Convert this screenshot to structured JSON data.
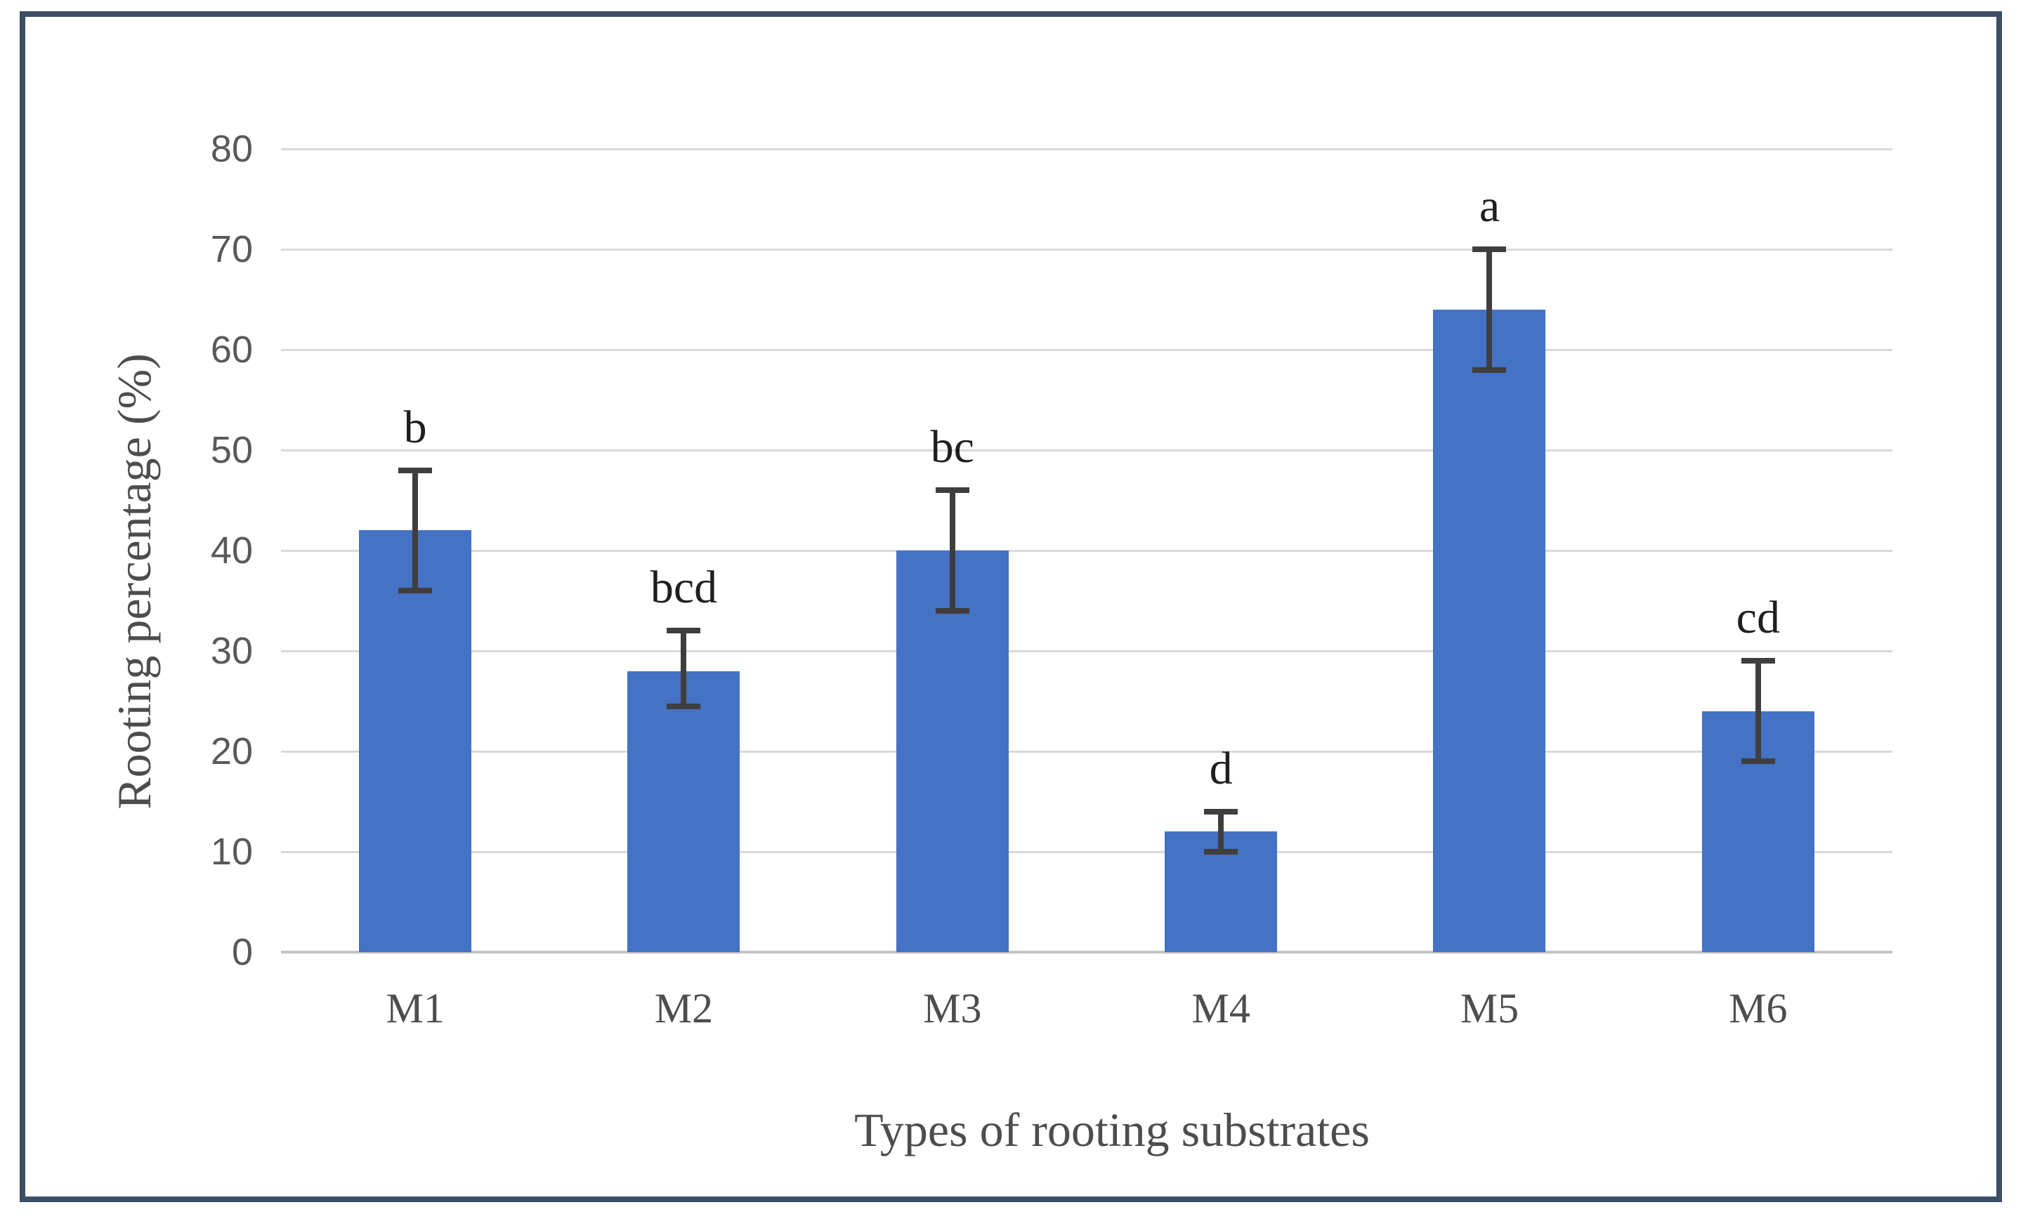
{
  "figure": {
    "frame_border_color": "#3C4E66",
    "background_color": "#FFFFFF"
  },
  "chart_data": {
    "type": "bar",
    "title": "",
    "xlabel": "Types of rooting substrates",
    "ylabel": "Rooting percentage (%)",
    "categories": [
      "M1",
      "M2",
      "M3",
      "M4",
      "M5",
      "M6"
    ],
    "values": [
      42,
      28,
      40,
      12,
      64,
      24
    ],
    "error_low": [
      36,
      24.5,
      34,
      10,
      58,
      19
    ],
    "error_high": [
      48,
      32,
      46,
      14,
      70,
      29
    ],
    "sig_letters": [
      "b",
      "bcd",
      "bc",
      "d",
      "a",
      "cd"
    ],
    "ylim": [
      0,
      80
    ],
    "yticks": [
      0,
      10,
      20,
      30,
      40,
      50,
      60,
      70,
      80
    ],
    "grid": "horizontal-only",
    "legend": "none",
    "bar_color": "#4472C4",
    "error_bar_color": "#403E3D",
    "gridline_color": "#D9D9D9",
    "axis_line_color": "#C3C3C3",
    "ytick_label_color": "#595959",
    "category_label_color": "#4D4D4D",
    "axis_title_color": "#4D4D4D",
    "sig_letter_color": "#1F1F1F"
  }
}
